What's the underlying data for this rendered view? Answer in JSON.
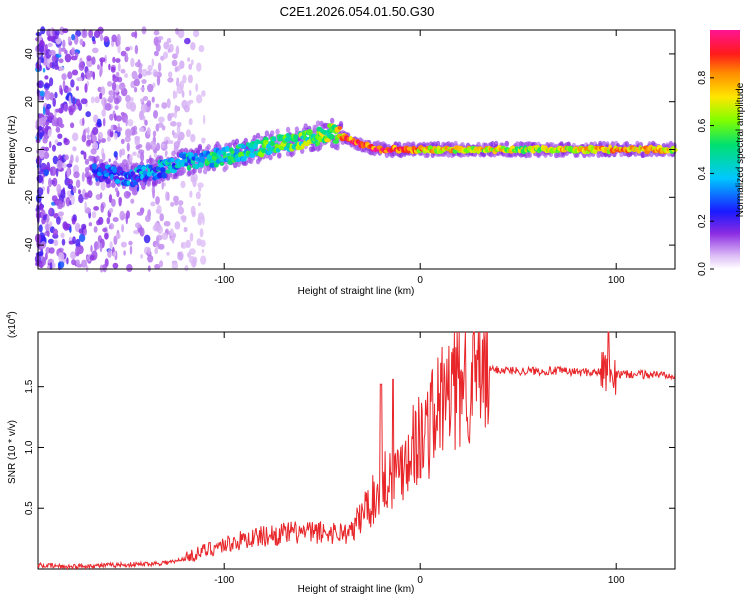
{
  "title": "C2E1.2026.054.01.50.G30",
  "colors": {
    "snr_line": "#e8262a",
    "axis": "#000000",
    "scatter_noise": "#8a2be2"
  },
  "chart_data": [
    {
      "type": "heatmap",
      "name": "spectrogram",
      "xlabel": "Height of straight line (km)",
      "ylabel": "Frequency (Hz)",
      "xlim": [
        -195,
        130
      ],
      "ylim": [
        -50,
        50
      ],
      "x_ticks": [
        -100,
        0,
        100
      ],
      "x_tick_labels": [
        "-100",
        "0",
        "100"
      ],
      "y_ticks": [
        -40,
        -20,
        0,
        20,
        40
      ],
      "y_tick_labels": [
        "-40",
        "-20",
        "0",
        "20",
        "40"
      ],
      "colorbar": {
        "label": "Normalized spectral amplitude",
        "range": [
          0.0,
          1.0
        ],
        "ticks": [
          0.0,
          0.2,
          0.4,
          0.6,
          0.8
        ],
        "tick_labels": [
          "0.0",
          "0.2",
          "0.4",
          "0.6",
          "0.8"
        ],
        "colormap": "rainbow (white-purple-blue-cyan-green-yellow-orange-red-magenta)"
      },
      "trace": {
        "x": [
          -165,
          -150,
          -135,
          -120,
          -100,
          -80,
          -60,
          -45,
          -38,
          -30,
          -20,
          -10,
          0,
          20,
          50,
          80,
          100,
          130
        ],
        "y": [
          -9,
          -12,
          -9,
          -5,
          -3,
          1,
          4,
          7,
          5,
          2,
          0,
          0,
          0,
          0,
          0,
          0,
          0,
          0
        ],
        "amplitude": [
          0.2,
          0.25,
          0.35,
          0.4,
          0.45,
          0.5,
          0.55,
          0.6,
          0.8,
          0.85,
          0.9,
          0.85,
          0.75,
          0.7,
          0.65,
          0.7,
          0.75,
          0.7
        ]
      }
    },
    {
      "type": "line",
      "name": "snr",
      "xlabel": "Height of straight line (km)",
      "ylabel": "SNR (10 * v/v)",
      "y_multiplier": "(x10^4)",
      "y_multiplier_base": "(x10",
      "y_multiplier_exp": "4",
      "y_multiplier_close": ")",
      "xlim": [
        -195,
        130
      ],
      "ylim": [
        0,
        1.95
      ],
      "x_ticks": [
        -100,
        0,
        100
      ],
      "x_tick_labels": [
        "-100",
        "0",
        "100"
      ],
      "y_ticks": [
        0.5,
        1.0,
        1.5
      ],
      "y_tick_labels": [
        "0.5",
        "1.0",
        "1.5"
      ],
      "x": [
        -195,
        -180,
        -160,
        -140,
        -125,
        -115,
        -105,
        -95,
        -85,
        -75,
        -65,
        -55,
        -45,
        -35,
        -28,
        -22,
        -18,
        -12,
        -8,
        -4,
        0,
        5,
        10,
        15,
        20,
        25,
        30,
        35,
        40,
        50,
        60,
        70,
        80,
        90,
        95,
        100,
        110,
        120,
        130
      ],
      "values": [
        0.03,
        0.02,
        0.03,
        0.04,
        0.06,
        0.12,
        0.18,
        0.22,
        0.26,
        0.28,
        0.3,
        0.3,
        0.3,
        0.3,
        0.5,
        0.6,
        0.75,
        0.8,
        0.9,
        1.05,
        1.05,
        1.2,
        1.35,
        1.45,
        1.55,
        1.6,
        1.62,
        1.64,
        1.64,
        1.63,
        1.63,
        1.63,
        1.62,
        1.62,
        1.62,
        1.6,
        1.6,
        1.6,
        1.6
      ],
      "spikes": [
        {
          "x": -20,
          "value": 1.52
        },
        {
          "x": -14,
          "value": 1.56
        },
        {
          "x": 0,
          "value": 0.75
        },
        {
          "x": 96,
          "value": 1.95
        }
      ]
    }
  ]
}
